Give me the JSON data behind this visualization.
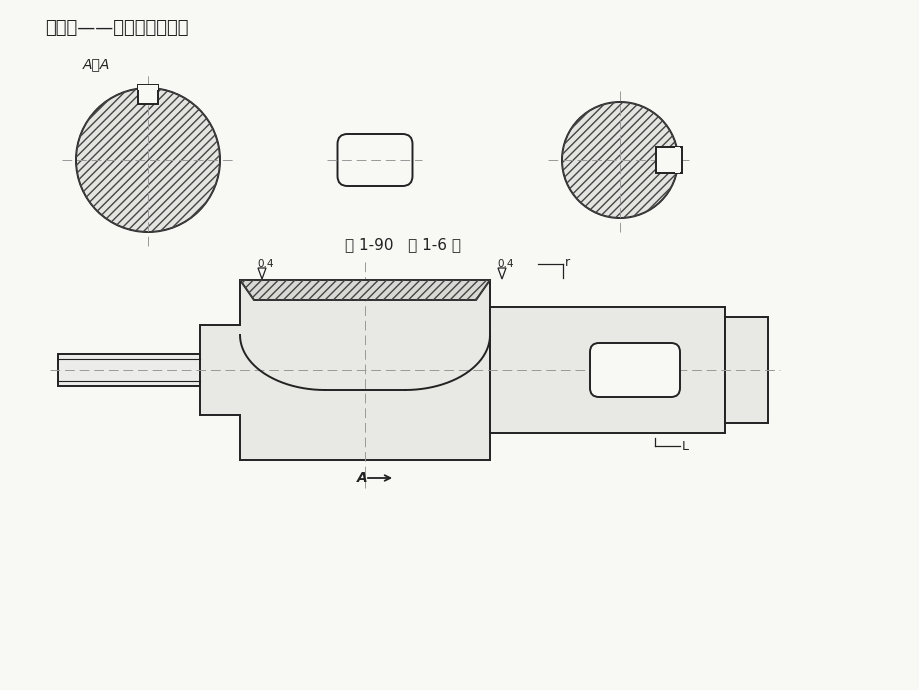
{
  "title": "第一章——分析结构工艺性",
  "caption": "图 1-90   题 1-6 图",
  "section_label": "A－A",
  "cut_label": "A",
  "bg_color": "#f8f8f5",
  "line_color": "#222222",
  "note_04_left": "0.4",
  "note_04_right": "0.4",
  "note_r": "r",
  "note_l": "L"
}
